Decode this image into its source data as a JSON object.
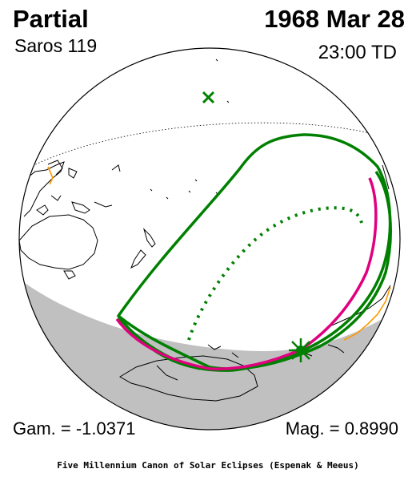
{
  "header": {
    "eclipse_type": "Partial",
    "saros": "Saros 119",
    "date": "1968 Mar 28",
    "time": "23:00 TD"
  },
  "footer": {
    "gamma": "Gam. = -1.0371",
    "magnitude": "Mag. = 0.8990",
    "credit": "Five Millennium Canon of Solar Eclipses (Espenak & Meeus)"
  },
  "colors": {
    "night_shade": "#c0c0c0",
    "limit_curves": "#008000",
    "max_eclipse_curves": "#e0007f",
    "land_outline": "#000000",
    "sun_marker": "#008000",
    "subsolar_marker": "#008000",
    "coast_highlight": "#ff9900"
  },
  "map": {
    "projection": "orthographic globe",
    "markers": [
      {
        "name": "greatest-eclipse",
        "symbol": "sun-star-icon"
      },
      {
        "name": "subsolar-point",
        "symbol": "x-cross-icon"
      }
    ]
  }
}
